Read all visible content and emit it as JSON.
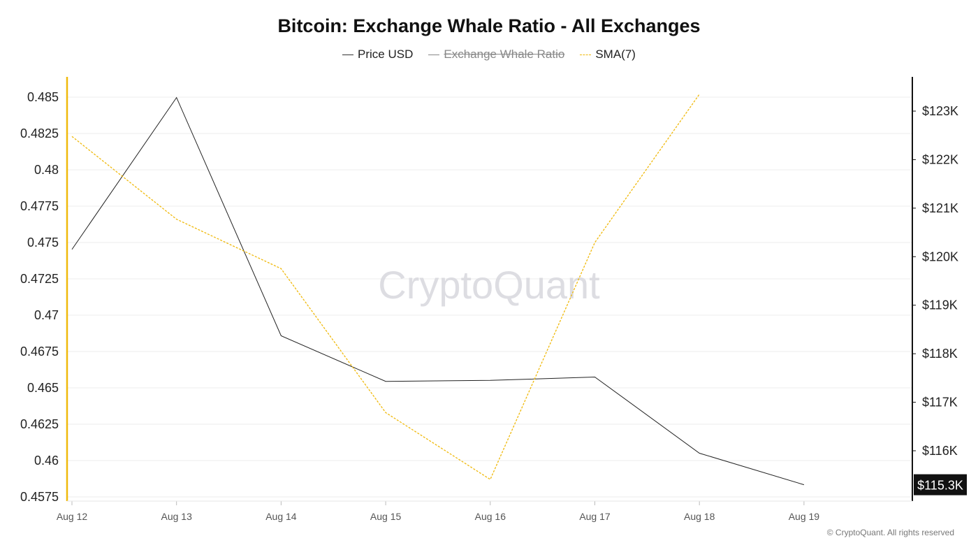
{
  "title": "Bitcoin: Exchange Whale Ratio - All Exchanges",
  "legend": [
    {
      "label": "Price USD",
      "state": "on",
      "color": "#333333",
      "style": "solid"
    },
    {
      "label": "Exchange Whale Ratio",
      "state": "off",
      "color": "#888888",
      "style": "solid"
    },
    {
      "label": "SMA(7)",
      "state": "on",
      "color": "#f0b90b",
      "style": "dashed"
    }
  ],
  "watermark": "CryptoQuant",
  "copyright": "© CryptoQuant. All rights reserved",
  "colors": {
    "price": "#222222",
    "sma": "#f0b90b",
    "left_axis": "#f0b90b",
    "right_axis": "#111111",
    "grid": "#ececec",
    "badge_bg": "#111111",
    "badge_text": "#ffffff"
  },
  "chart_data": {
    "type": "line",
    "title": "Bitcoin: Exchange Whale Ratio - All Exchanges",
    "categories": [
      "Aug 12",
      "Aug 13",
      "Aug 14",
      "Aug 15",
      "Aug 16",
      "Aug 17",
      "Aug 18",
      "Aug 19"
    ],
    "left_axis": {
      "ticks": [
        0.4575,
        0.46,
        0.4625,
        0.465,
        0.4675,
        0.47,
        0.4725,
        0.475,
        0.4775,
        0.48,
        0.4825,
        0.485
      ],
      "tick_labels": [
        "0.4575",
        "0.46",
        "0.4625",
        "0.465",
        "0.4675",
        "0.47",
        "0.4725",
        "0.475",
        "0.4775",
        "0.48",
        "0.4825",
        "0.485"
      ]
    },
    "right_axis": {
      "ticks": [
        116000,
        117000,
        118000,
        119000,
        120000,
        121000,
        122000,
        123000
      ],
      "tick_labels": [
        "$116K",
        "$117K",
        "$118K",
        "$119K",
        "$120K",
        "$121K",
        "$122K",
        "$123K"
      ],
      "last_value_label": "$115.3K",
      "last_value": 115300
    },
    "grid": true,
    "series": [
      {
        "name": "Price USD",
        "axis": "right",
        "values": [
          120150,
          123280,
          118370,
          117430,
          117450,
          117520,
          115950,
          115300
        ]
      },
      {
        "name": "SMA(7)",
        "axis": "left",
        "values": [
          0.4823,
          0.4766,
          0.4732,
          0.4633,
          0.4587,
          0.475,
          0.4852,
          null
        ]
      }
    ]
  }
}
